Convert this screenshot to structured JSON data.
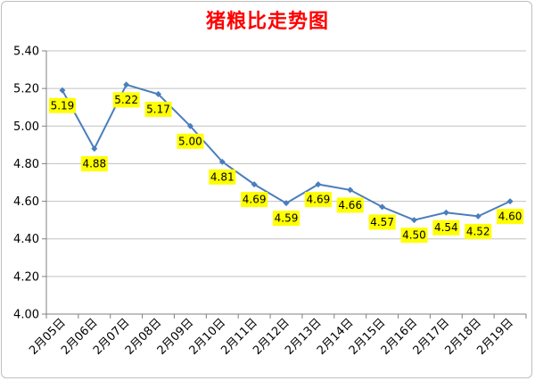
{
  "chart_data": {
    "type": "line",
    "title": "猪粮比走势图",
    "xlabel": "",
    "ylabel": "",
    "categories": [
      "2月05日",
      "2月06日",
      "2月07日",
      "2月08日",
      "2月09日",
      "2月10日",
      "2月11日",
      "2月12日",
      "2月13日",
      "2月14日",
      "2月15日",
      "2月16日",
      "2月17日",
      "2月18日",
      "2月19日"
    ],
    "values": [
      5.19,
      4.88,
      5.22,
      5.17,
      5.0,
      4.81,
      4.69,
      4.59,
      4.69,
      4.66,
      4.57,
      4.5,
      4.54,
      4.52,
      4.6
    ],
    "data_labels": [
      "5.19",
      "4.88",
      "5.22",
      "5.17",
      "5.00",
      "4.81",
      "4.69",
      "4.59",
      "4.69",
      "4.66",
      "4.57",
      "4.50",
      "4.54",
      "4.52",
      "4.60"
    ],
    "ylim": [
      4.0,
      5.4
    ],
    "yticks": [
      "4.00",
      "4.20",
      "4.40",
      "4.60",
      "4.80",
      "5.00",
      "5.20",
      "5.40"
    ],
    "grid": true,
    "legend": "none",
    "colors": {
      "line": "#4a7ebb",
      "marker": "#4a7ebb",
      "label_bg": "#ffff00",
      "title": "#ff0000",
      "grid": "#c0c0c0"
    }
  }
}
